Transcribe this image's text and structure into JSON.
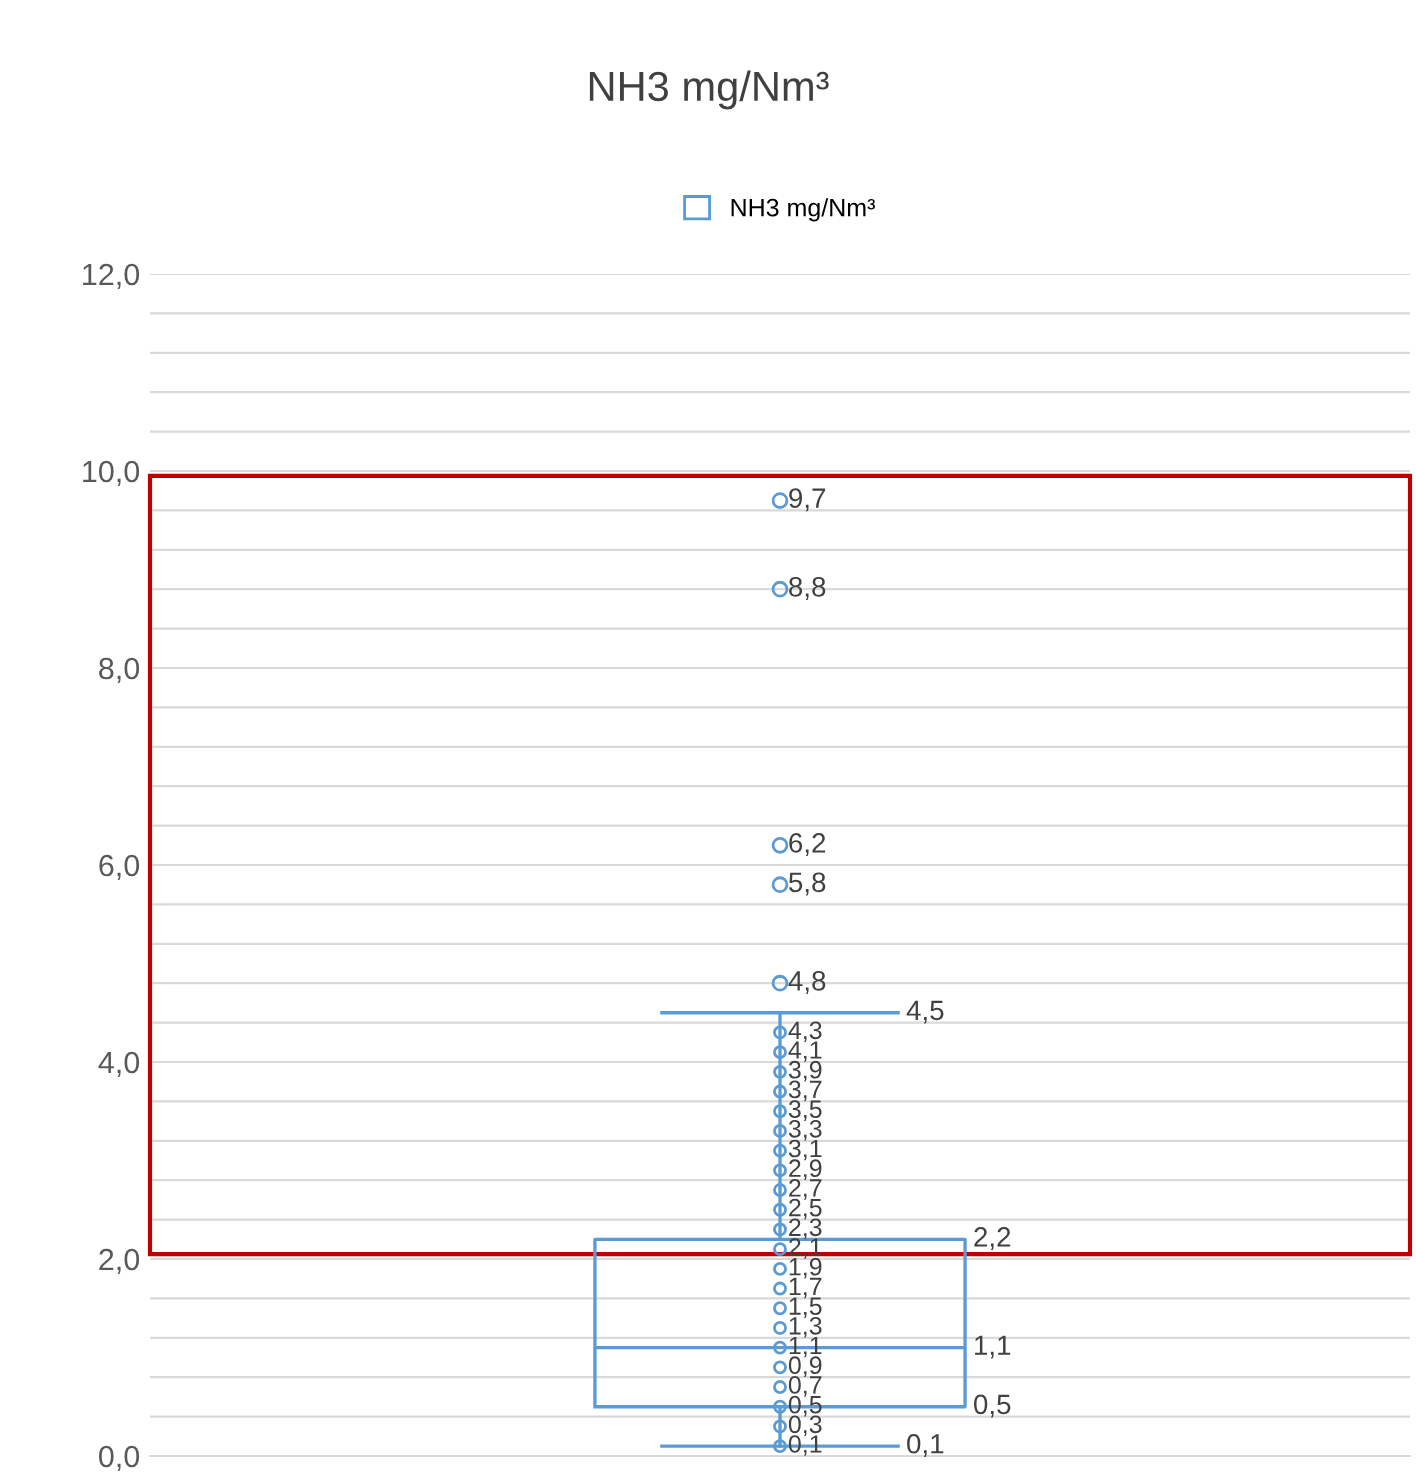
{
  "chart_data": {
    "type": "box",
    "title": "NH3 mg/Nm³",
    "categories": [
      null
    ],
    "series": [
      {
        "name": "NH3 mg/Nm³",
        "color": "#5b9bd5",
        "boxes": [
          {
            "low": 0.1,
            "q1": 0.5,
            "median": 1.1,
            "q3": 2.2,
            "high": 4.5,
            "outliers": [
              4.8,
              5.8,
              6.2,
              8.8,
              9.7
            ]
          }
        ]
      },
      {
        "type": "scatter",
        "color": "#5b9bd5",
        "x": [
          null,
          null,
          null,
          null,
          null,
          null,
          null,
          null,
          null,
          null,
          null,
          null,
          null,
          null,
          null,
          null,
          null,
          null,
          null,
          null,
          null,
          null
        ],
        "values": [
          0.1,
          0.3,
          0.5,
          0.7,
          0.9,
          1.1,
          1.3,
          1.5,
          1.7,
          1.9,
          2.1,
          2.3,
          2.5,
          2.7,
          2.9,
          3.1,
          3.3,
          3.5,
          3.7,
          3.9,
          4.1,
          4.3
        ],
        "value_labels": [
          "0,1",
          "0,3",
          "0,5",
          "0,7",
          "0,9",
          "1,1",
          "1,3",
          "1,5",
          "1,7",
          "1,9",
          "2,1",
          "2,3",
          "2,5",
          "2,7",
          "2,9",
          "3,1",
          "3,3",
          "3,5",
          "3,7",
          "3,9",
          "4,1",
          "4,3"
        ]
      }
    ],
    "annotations": [
      "0,1",
      "0,5",
      "1,1",
      "2,2",
      "4,5",
      "4,8",
      "5,8",
      "6,2",
      "8,8",
      "9,7"
    ],
    "ylim": [
      0,
      12
    ],
    "yticks": [
      {
        "value": 0,
        "label": "0,0"
      },
      {
        "value": 0.4,
        "label": null
      },
      {
        "value": 0.8,
        "label": null
      },
      {
        "value": 1.2,
        "label": null
      },
      {
        "value": 1.6,
        "label": null
      },
      {
        "value": 2,
        "label": "2,0"
      },
      {
        "value": 2.4,
        "label": null
      },
      {
        "value": 2.8,
        "label": null
      },
      {
        "value": 3.2,
        "label": null
      },
      {
        "value": 3.6,
        "label": null
      },
      {
        "value": 4,
        "label": "4,0"
      },
      {
        "value": 4.4,
        "label": null
      },
      {
        "value": 4.8,
        "label": null
      },
      {
        "value": 5.2,
        "label": null
      },
      {
        "value": 5.6,
        "label": null
      },
      {
        "value": 6,
        "label": "6,0"
      },
      {
        "value": 6.4,
        "label": null
      },
      {
        "value": 6.8,
        "label": null
      },
      {
        "value": 7.2,
        "label": null
      },
      {
        "value": 7.6,
        "label": null
      },
      {
        "value": 8,
        "label": "8,0"
      },
      {
        "value": 8.4,
        "label": null
      },
      {
        "value": 8.8,
        "label": null
      },
      {
        "value": 9.2,
        "label": null
      },
      {
        "value": 9.6,
        "label": null
      },
      {
        "value": 10,
        "label": "10,0"
      },
      {
        "value": 10.4,
        "label": null
      },
      {
        "value": 10.8,
        "label": null
      },
      {
        "value": 11.2,
        "label": null
      },
      {
        "value": 11.6,
        "label": null
      },
      {
        "value": 12,
        "label": "12,0"
      }
    ],
    "grid": "y",
    "legend": "top",
    "marker": "circle"
  }
}
